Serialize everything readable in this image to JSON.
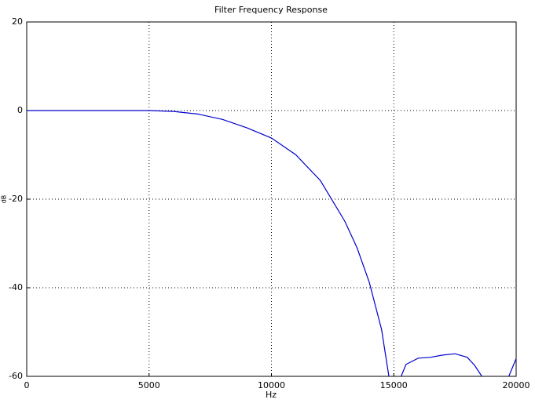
{
  "chart_data": {
    "type": "line",
    "title": "Filter Frequency Response",
    "xlabel": "Hz",
    "ylabel": "dB",
    "x": [
      0,
      2000,
      5000,
      6000,
      7000,
      8000,
      9000,
      10000,
      11000,
      12000,
      13000,
      13500,
      14000,
      14500,
      14800,
      15000,
      15300,
      15500,
      16000,
      16500,
      17000,
      17500,
      18000,
      18300,
      18600,
      19000,
      19700,
      20000
    ],
    "values": [
      0,
      0,
      0,
      -0.2,
      -0.8,
      -2,
      -3.9,
      -6.2,
      -10,
      -15.8,
      -25,
      -31,
      -38.8,
      -49.4,
      -60,
      null,
      -60,
      -57.3,
      -55.9,
      -55.7,
      -55.2,
      -54.9,
      -55.7,
      -57.5,
      -60,
      null,
      -60,
      -56
    ],
    "color": "#0000cc",
    "xlim": [
      0,
      20000
    ],
    "xticks": [
      0,
      5000,
      10000,
      15000,
      20000
    ],
    "ylim": [
      -60,
      20
    ],
    "yticks": [
      -60,
      -40,
      -20,
      0,
      20
    ],
    "grid": true
  }
}
